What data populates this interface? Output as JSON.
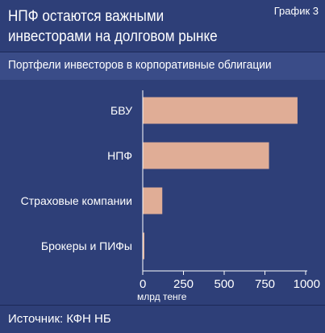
{
  "header": {
    "title_line1": "НПФ остаются важными",
    "title_line2": "инвесторами на долговом рынке",
    "chart_number": "График 3"
  },
  "subtitle": "Портфели инвесторов в корпоративные облигации",
  "footer": {
    "source": "Источник: КФН НБ"
  },
  "colors": {
    "background": "#2e3f78",
    "bar": "#e0ad96",
    "axis": "#ffffff"
  },
  "chart_data": {
    "type": "bar",
    "orientation": "horizontal",
    "categories": [
      "БВУ",
      "НПФ",
      "Страховые компании",
      "Брокеры и ПИФы"
    ],
    "values": [
      950,
      775,
      120,
      5
    ],
    "xlabel": "млрд тенге",
    "xlim": [
      0,
      1000
    ],
    "xticks": [
      0,
      250,
      500,
      750,
      1000
    ],
    "grid": false
  }
}
